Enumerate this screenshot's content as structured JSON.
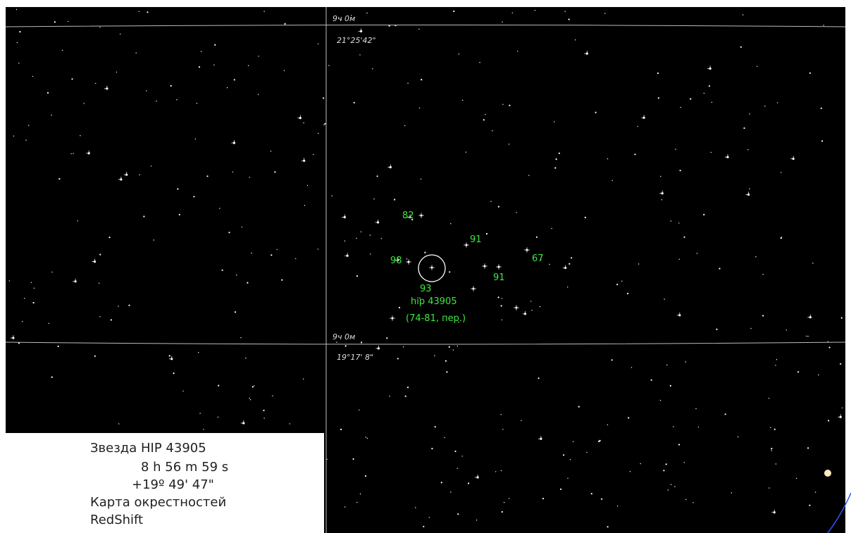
{
  "grid_labels": {
    "ra_top": "9ч 0м",
    "dec_top": "21°25'42\"",
    "ra_bottom": "9ч 0м",
    "dec_bottom": "19°17' 8\""
  },
  "object_labels": [
    "82",
    "91",
    "98",
    "67",
    "91",
    "93"
  ],
  "target": {
    "name": "hip 43905",
    "note": "(74-81, пер.)"
  },
  "info": {
    "lines": [
      "Звезда HIP 43905",
      "8 h 56 m 59 s",
      "+19º 49' 47\"",
      "Карта окрестностей",
      "RedShift"
    ]
  }
}
